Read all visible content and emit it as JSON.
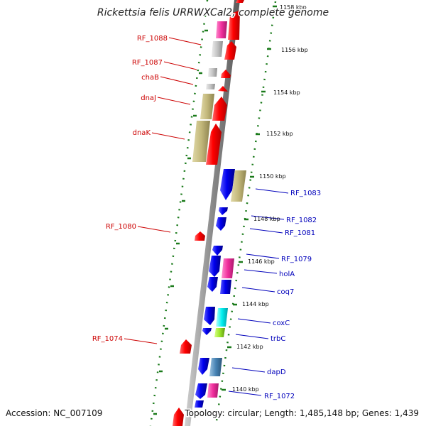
{
  "title": "Rickettsia felis URRWXCal2, complete genome",
  "footer": {
    "accession": "Accession: NC_007109",
    "topology": "Topology: circular; Length: 1,485,148 bp; Genes: 1,439"
  },
  "colors": {
    "forward_label": "#cc0000",
    "reverse_label": "#0000bb",
    "backbone": "#999999",
    "tick": "#1a7a1a"
  },
  "scale_labels": [
    {
      "label": "1158 kbp",
      "pos_kbp": 1158
    },
    {
      "label": "1156 kbp",
      "pos_kbp": 1156
    },
    {
      "label": "1154 kbp",
      "pos_kbp": 1154
    },
    {
      "label": "1152 kbp",
      "pos_kbp": 1152
    },
    {
      "label": "1150 kbp",
      "pos_kbp": 1150
    },
    {
      "label": "1148 kbp",
      "pos_kbp": 1148
    },
    {
      "label": "1146 kbp",
      "pos_kbp": 1146
    },
    {
      "label": "1144 kbp",
      "pos_kbp": 1144
    },
    {
      "label": "1142 kbp",
      "pos_kbp": 1142
    },
    {
      "label": "1140 kbp",
      "pos_kbp": 1140
    }
  ],
  "gene_labels": [
    {
      "name": "RF_1088",
      "strand": "forward"
    },
    {
      "name": "RF_1087",
      "strand": "forward"
    },
    {
      "name": "chaB",
      "strand": "forward"
    },
    {
      "name": "dnaJ",
      "strand": "forward"
    },
    {
      "name": "dnaK",
      "strand": "forward"
    },
    {
      "name": "RF_1080",
      "strand": "forward"
    },
    {
      "name": "RF_1074",
      "strand": "forward"
    },
    {
      "name": "RF_1083",
      "strand": "reverse"
    },
    {
      "name": "RF_1082",
      "strand": "reverse"
    },
    {
      "name": "RF_1081",
      "strand": "reverse"
    },
    {
      "name": "RF_1079",
      "strand": "reverse"
    },
    {
      "name": "holA",
      "strand": "reverse"
    },
    {
      "name": "coq7",
      "strand": "reverse"
    },
    {
      "name": "coxC",
      "strand": "reverse"
    },
    {
      "name": "trbC",
      "strand": "reverse"
    },
    {
      "name": "dapD",
      "strand": "reverse"
    },
    {
      "name": "RF_1072",
      "strand": "reverse"
    }
  ]
}
